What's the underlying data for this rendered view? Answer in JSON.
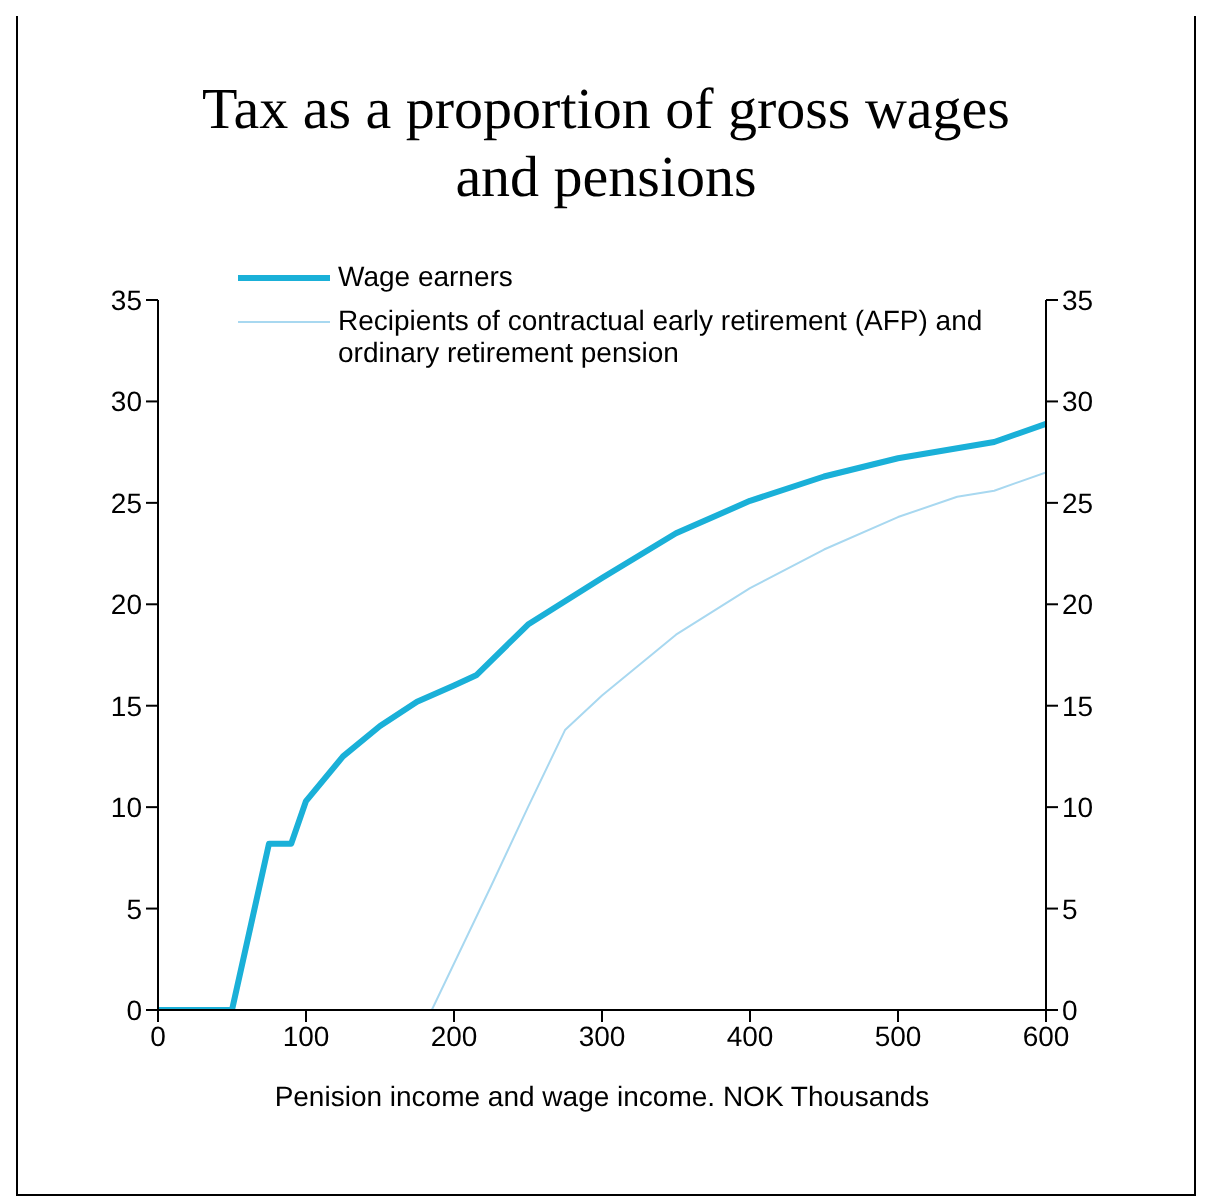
{
  "chart_data": {
    "type": "line",
    "title": "Tax as a proportion of gross wages and pensions",
    "xlabel": "Penision income and wage income. NOK Thousands",
    "series": [
      {
        "name": "Wage earners",
        "color": "#1ab0d8",
        "x": [
          0,
          50,
          75,
          90,
          100,
          125,
          150,
          175,
          200,
          215,
          250,
          300,
          350,
          400,
          450,
          500,
          565,
          600
        ],
        "values": [
          0,
          0,
          8.2,
          8.2,
          10.3,
          12.5,
          14,
          15.2,
          16,
          16.5,
          19,
          21.3,
          23.5,
          25.1,
          26.3,
          27.2,
          28,
          28.9
        ]
      },
      {
        "name": "Recipients of contractual early retirement (AFP) and ordinary retirement pension",
        "color": "#a8d8f0",
        "x": [
          0,
          185,
          225,
          250,
          275,
          300,
          350,
          400,
          450,
          500,
          540,
          565,
          600
        ],
        "values": [
          0,
          0,
          6.1,
          10,
          13.8,
          15.5,
          18.5,
          20.8,
          22.7,
          24.3,
          25.3,
          25.6,
          26.5
        ]
      }
    ],
    "xlim": [
      0,
      600
    ],
    "xticks": [
      0,
      100,
      200,
      300,
      400,
      500,
      600
    ],
    "ylim": [
      0,
      35
    ],
    "yticks": [
      0,
      5,
      10,
      15,
      20,
      25,
      30,
      35
    ],
    "y2lim": [
      0,
      35
    ],
    "y2ticks": [
      0,
      5,
      10,
      15,
      20,
      25,
      30,
      35
    ],
    "grid": false,
    "legend": "top left",
    "marker": "none",
    "line_style": "solid"
  }
}
